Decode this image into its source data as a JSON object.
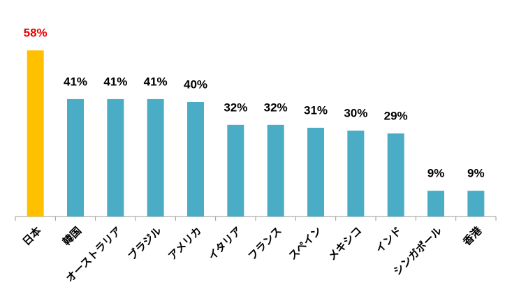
{
  "chart_data": {
    "type": "bar",
    "categories": [
      "日本",
      "韓国",
      "オーストラリア",
      "ブラジル",
      "アメリカ",
      "イタリア",
      "フランス",
      "スペイン",
      "メキシコ",
      "インド",
      "シンガポール",
      "香港"
    ],
    "values": [
      58,
      41,
      41,
      41,
      40,
      32,
      32,
      31,
      30,
      29,
      9,
      9
    ],
    "value_labels": [
      "58%",
      "41%",
      "41%",
      "41%",
      "40%",
      "32%",
      "32%",
      "31%",
      "30%",
      "29%",
      "9%",
      "9%"
    ],
    "colors": [
      "#ffc000",
      "#4bacc6",
      "#4bacc6",
      "#4bacc6",
      "#4bacc6",
      "#4bacc6",
      "#4bacc6",
      "#4bacc6",
      "#4bacc6",
      "#4bacc6",
      "#4bacc6",
      "#4bacc6"
    ],
    "value_label_colors": [
      "#e60000",
      "#000000",
      "#000000",
      "#000000",
      "#000000",
      "#000000",
      "#000000",
      "#000000",
      "#000000",
      "#000000",
      "#000000",
      "#000000"
    ],
    "ylim": [
      0,
      60
    ]
  }
}
